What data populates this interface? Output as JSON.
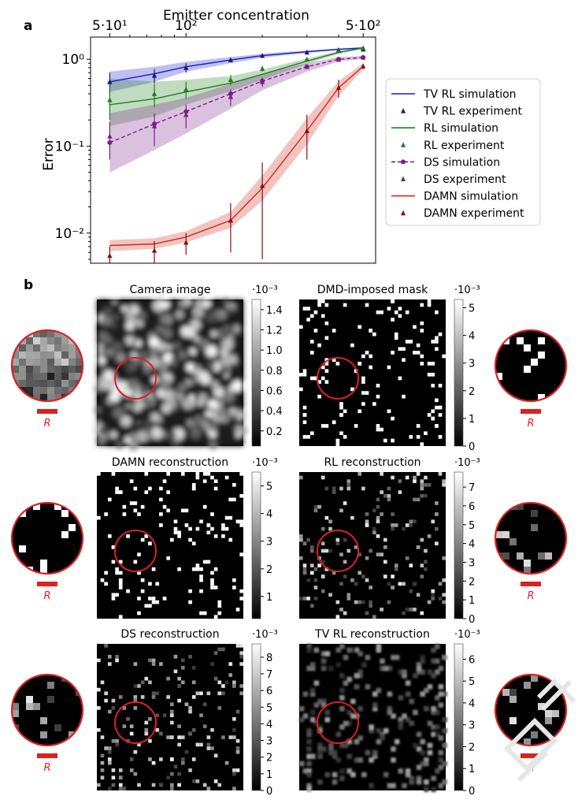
{
  "panel_a": {
    "label": "a",
    "chart_data": {
      "type": "line",
      "title": "Emitter concentration",
      "xlabel": "Emitter concentration",
      "ylabel": "Error",
      "xscale": "log",
      "yscale": "log",
      "xlim": [
        42,
        560
      ],
      "ylim": [
        0.0045,
        1.8
      ],
      "x_ticks": [
        "5·10¹",
        "10²",
        "5·10²"
      ],
      "y_ticks": [
        "10⁰",
        "10⁻¹",
        "10⁻²"
      ],
      "legend_position": "right",
      "x": [
        50,
        75,
        100,
        150,
        200,
        300,
        400,
        500
      ],
      "series": [
        {
          "name": "TV RL simulation",
          "kind": "simulation",
          "color": "#1a1acc",
          "values": [
            0.55,
            0.68,
            0.82,
            0.98,
            1.1,
            1.22,
            1.3,
            1.35
          ],
          "band_lower": [
            0.42,
            0.55,
            0.72,
            0.9,
            1.04,
            1.18,
            1.27,
            1.33
          ],
          "band_upper": [
            0.72,
            0.82,
            0.93,
            1.06,
            1.16,
            1.26,
            1.33,
            1.38
          ]
        },
        {
          "name": "TV RL experiment",
          "kind": "experiment",
          "color": "#1a1a6e",
          "values": [
            0.55,
            0.65,
            0.8,
            0.98,
            1.1,
            1.2,
            1.28,
            1.3
          ],
          "err": [
            0.15,
            0.12,
            0.1,
            0.06,
            0.05,
            0.04,
            0.03,
            0.03
          ]
        },
        {
          "name": "RL simulation",
          "kind": "simulation",
          "color": "#1d7f1d",
          "values": [
            0.3,
            0.35,
            0.42,
            0.53,
            0.67,
            0.95,
            1.2,
            1.35
          ],
          "band_lower": [
            0.17,
            0.22,
            0.3,
            0.43,
            0.58,
            0.88,
            1.15,
            1.31
          ],
          "band_upper": [
            0.6,
            0.55,
            0.58,
            0.64,
            0.76,
            1.02,
            1.24,
            1.38
          ]
        },
        {
          "name": "RL experiment",
          "kind": "experiment",
          "color": "#1d7f1d",
          "values": [
            0.34,
            0.4,
            0.45,
            0.58,
            0.78,
            1.0,
            1.25,
            1.35
          ],
          "err": [
            0.14,
            0.12,
            0.1,
            0.08,
            0.06,
            0.04,
            0.03,
            0.03
          ]
        },
        {
          "name": "DS simulation",
          "kind": "simulation",
          "color": "#7a1f8a",
          "values": [
            0.11,
            0.18,
            0.25,
            0.4,
            0.56,
            0.82,
            1.0,
            1.05
          ],
          "band_lower": [
            0.05,
            0.09,
            0.14,
            0.27,
            0.44,
            0.72,
            0.94,
            1.01
          ],
          "band_upper": [
            0.24,
            0.3,
            0.36,
            0.52,
            0.68,
            0.9,
            1.06,
            1.09
          ]
        },
        {
          "name": "DS experiment",
          "kind": "experiment",
          "color": "#7a1f8a",
          "values": [
            0.13,
            0.17,
            0.23,
            0.37,
            0.55,
            0.82,
            0.99,
            1.05
          ],
          "err": [
            0.06,
            0.07,
            0.07,
            0.08,
            0.07,
            0.05,
            0.04,
            0.03
          ]
        },
        {
          "name": "DAMN simulation",
          "kind": "simulation",
          "color": "#cc2a1e",
          "values": [
            0.0072,
            0.0075,
            0.009,
            0.014,
            0.033,
            0.15,
            0.47,
            0.83
          ],
          "band_lower": [
            0.0062,
            0.0066,
            0.0078,
            0.0115,
            0.0235,
            0.105,
            0.38,
            0.76
          ],
          "band_upper": [
            0.0083,
            0.0087,
            0.0105,
            0.0175,
            0.046,
            0.21,
            0.56,
            0.9
          ]
        },
        {
          "name": "DAMN experiment",
          "kind": "experiment",
          "color": "#8b0d0d",
          "values": [
            0.0055,
            0.0063,
            0.0078,
            0.014,
            0.035,
            0.15,
            0.47,
            0.83
          ],
          "err": [
            0.0015,
            0.0018,
            0.0022,
            0.008,
            0.03,
            0.08,
            0.11,
            0.06
          ]
        }
      ]
    }
  },
  "panel_b": {
    "label": "b",
    "scale_label": "R",
    "circle_color": "#dd2020",
    "images": [
      {
        "id": "camera",
        "title": "Camera image",
        "exponent": "·10⁻³",
        "ticks": [
          "1.4",
          "1.2",
          "1.0",
          "0.8",
          "0.6",
          "0.4",
          "0.2"
        ],
        "tick_values": [
          1.4,
          1.2,
          1.0,
          0.8,
          0.6,
          0.4,
          0.2
        ],
        "vmin": 0.05,
        "vmax": 1.5,
        "style": "blur",
        "inset": "left"
      },
      {
        "id": "mask",
        "title": "DMD-imposed mask",
        "exponent": "·10⁻³",
        "ticks": [
          "5",
          "4",
          "3",
          "2",
          "1",
          "0"
        ],
        "tick_values": [
          5,
          4,
          3,
          2,
          1,
          0
        ],
        "vmin": 0,
        "vmax": 5.3,
        "style": "binary",
        "inset": "right"
      },
      {
        "id": "damn",
        "title": "DAMN reconstruction",
        "exponent": "·10⁻³",
        "ticks": [
          "5",
          "4",
          "3",
          "2",
          "1"
        ],
        "tick_values": [
          5,
          4,
          3,
          2,
          1
        ],
        "vmin": 0.2,
        "vmax": 5.5,
        "style": "binary",
        "inset": "left"
      },
      {
        "id": "rl",
        "title": "RL reconstruction",
        "exponent": "·10⁻³",
        "ticks": [
          "7",
          "6",
          "5",
          "4",
          "3",
          "2",
          "1",
          "0"
        ],
        "tick_values": [
          7,
          6,
          5,
          4,
          3,
          2,
          1,
          0
        ],
        "vmin": 0,
        "vmax": 7.8,
        "style": "grey",
        "inset": "right"
      },
      {
        "id": "ds",
        "title": "DS reconstruction",
        "exponent": "·10⁻³",
        "ticks": [
          "8",
          "7",
          "6",
          "5",
          "4",
          "3",
          "2",
          "1",
          "0"
        ],
        "tick_values": [
          8,
          7,
          6,
          5,
          4,
          3,
          2,
          1,
          0
        ],
        "vmin": 0,
        "vmax": 8.8,
        "style": "grey",
        "inset": "left"
      },
      {
        "id": "tvrl",
        "title": "TV RL reconstruction",
        "exponent": "·10⁻³",
        "ticks": [
          "6",
          "5",
          "4",
          "3",
          "2",
          "1",
          "0"
        ],
        "tick_values": [
          6,
          5,
          4,
          3,
          2,
          1,
          0
        ],
        "vmin": 0,
        "vmax": 6.7,
        "style": "smooth",
        "inset": "right"
      }
    ]
  }
}
